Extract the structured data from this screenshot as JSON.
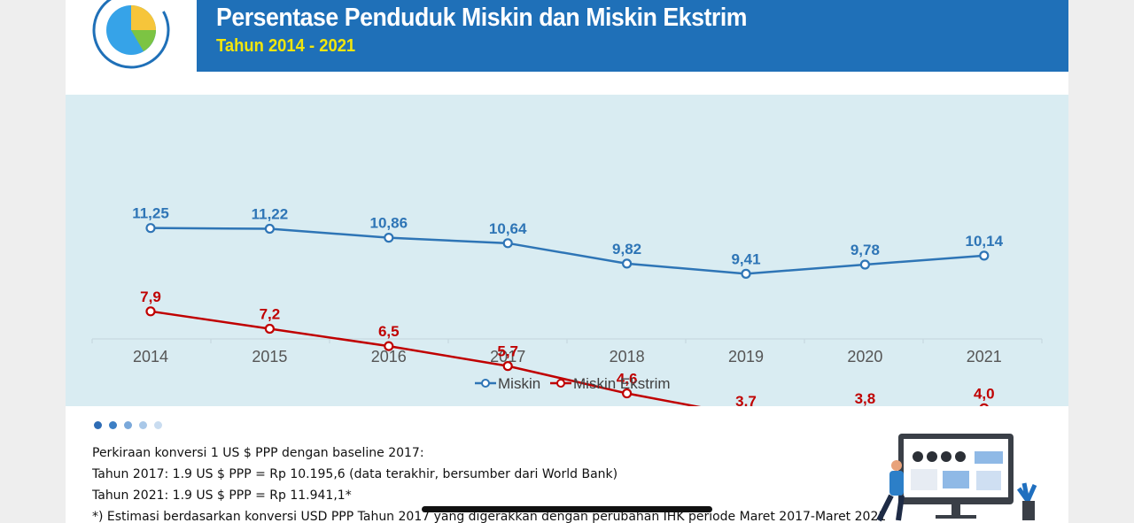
{
  "header": {
    "title": "Persentase Penduduk Miskin dan Miskin Ekstrim",
    "subtitle": "Tahun 2014 - 2021"
  },
  "colors": {
    "header_bg": "#1f70b8",
    "subtitle": "#f2e60c",
    "chart_bg": "#d9ecf2",
    "miskin": "#2e75b6",
    "miskin_ekstrim": "#c00000"
  },
  "logo": {
    "icon": "pie-chart-icon"
  },
  "chart_data": {
    "type": "line",
    "x": [
      "2014",
      "2015",
      "2016",
      "2017",
      "2018",
      "2019",
      "2020",
      "2021"
    ],
    "series": [
      {
        "name": "Miskin",
        "values": [
          11.25,
          11.22,
          10.86,
          10.64,
          9.82,
          9.41,
          9.78,
          10.14
        ],
        "labels": [
          "11,25",
          "11,22",
          "10,86",
          "10,64",
          "9,82",
          "9,41",
          "9,78",
          "10,14"
        ],
        "color": "#2e75b6"
      },
      {
        "name": "Miskin Ekstrim",
        "values": [
          7.9,
          7.2,
          6.5,
          5.7,
          4.6,
          3.7,
          3.8,
          4.0
        ],
        "labels": [
          "7,9",
          "7,2",
          "6,5",
          "5,7",
          "4,6",
          "3,7",
          "3,8",
          "4,0"
        ],
        "color": "#c00000"
      }
    ],
    "ylim": [
      0,
      12
    ],
    "grid": false,
    "legend": "bottom-center"
  },
  "carousel": {
    "count": 5,
    "active": 0
  },
  "notes": {
    "line1": "Perkiraan konversi 1 US $ PPP dengan baseline 2017:",
    "line2": "Tahun 2017: 1.9 US $ PPP = Rp 10.195,6 (data terakhir, bersumber dari World Bank)",
    "line3": "Tahun 2021: 1.9 US $ PPP = Rp 11.941,1*",
    "line4": "*) Estimasi berdasarkan konversi USD PPP Tahun 2017 yang digerakkan dengan perubahan IHK periode Maret 2017-Maret 2021"
  },
  "illustration": {
    "icon": "dashboard-presenter-illustration"
  }
}
